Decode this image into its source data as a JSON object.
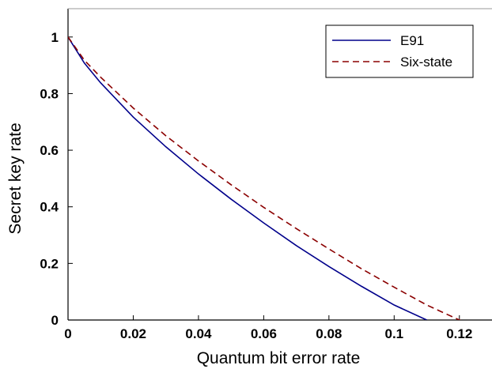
{
  "chart_data": {
    "type": "line",
    "title": "",
    "xlabel": "Quantum bit error rate",
    "ylabel": "Secret key rate",
    "xlim": [
      0,
      0.13
    ],
    "ylim": [
      0,
      1.1
    ],
    "x_ticks": [
      0,
      0.02,
      0.04,
      0.06,
      0.08,
      0.1,
      0.12
    ],
    "x_tick_labels": [
      "0",
      "0.02",
      "0.04",
      "0.06",
      "0.08",
      "0.1",
      "0.12"
    ],
    "y_ticks": [
      0,
      0.2,
      0.4,
      0.6,
      0.8,
      1
    ],
    "y_tick_labels": [
      "0",
      "0.2",
      "0.4",
      "0.6",
      "0.8",
      "1"
    ],
    "grid": false,
    "legend_position": "top-right",
    "series": [
      {
        "name": "E91",
        "color": "#00008b",
        "style": "solid",
        "x": [
          0,
          0.005,
          0.01,
          0.02,
          0.03,
          0.04,
          0.05,
          0.06,
          0.07,
          0.08,
          0.09,
          0.1,
          0.11
        ],
        "y": [
          1.0,
          0.908,
          0.838,
          0.717,
          0.612,
          0.516,
          0.427,
          0.343,
          0.263,
          0.189,
          0.119,
          0.053,
          0.0
        ]
      },
      {
        "name": "Six-state",
        "color": "#8b0000",
        "style": "dashed",
        "x": [
          0,
          0.005,
          0.01,
          0.02,
          0.03,
          0.04,
          0.05,
          0.06,
          0.07,
          0.08,
          0.09,
          0.1,
          0.11,
          0.12,
          0.126
        ],
        "y": [
          1.0,
          0.918,
          0.858,
          0.749,
          0.651,
          0.562,
          0.478,
          0.398,
          0.323,
          0.251,
          0.181,
          0.116,
          0.053,
          0.0,
          -0.03
        ]
      }
    ]
  }
}
